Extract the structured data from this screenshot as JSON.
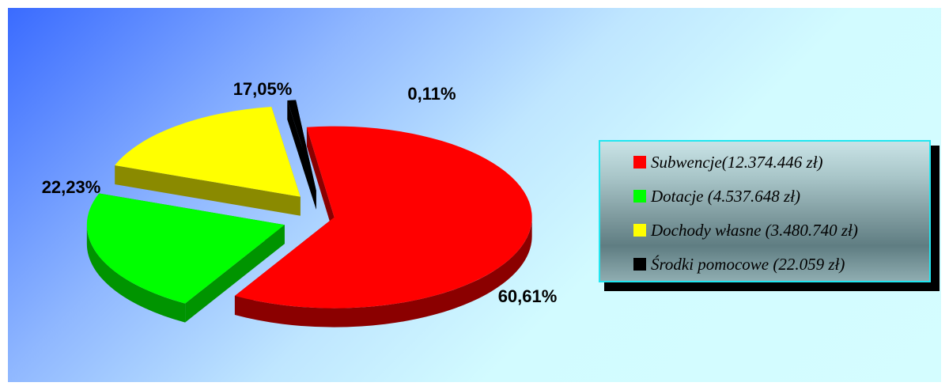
{
  "chart_data": {
    "type": "pie",
    "style": "3d-exploded",
    "slices": [
      {
        "label": "Subwencje(12.374.446 zł)",
        "percent_label": "60,61%",
        "value": 60.61,
        "color": "#ff0000",
        "side_color": "#8b0000"
      },
      {
        "label": "Dotacje (4.537.648 zł)",
        "percent_label": "22,23%",
        "value": 22.23,
        "color": "#00ff00",
        "side_color": "#009400"
      },
      {
        "label": "Dochody własne (3.480.740 zł)",
        "percent_label": "17,05%",
        "value": 17.05,
        "color": "#ffff00",
        "side_color": "#8a8a00"
      },
      {
        "label": "Środki pomocowe (22.059 zł)",
        "percent_label": "0,11%",
        "value": 0.11,
        "color": "#000000",
        "side_color": "#000000"
      }
    ],
    "legend_position": "right"
  }
}
